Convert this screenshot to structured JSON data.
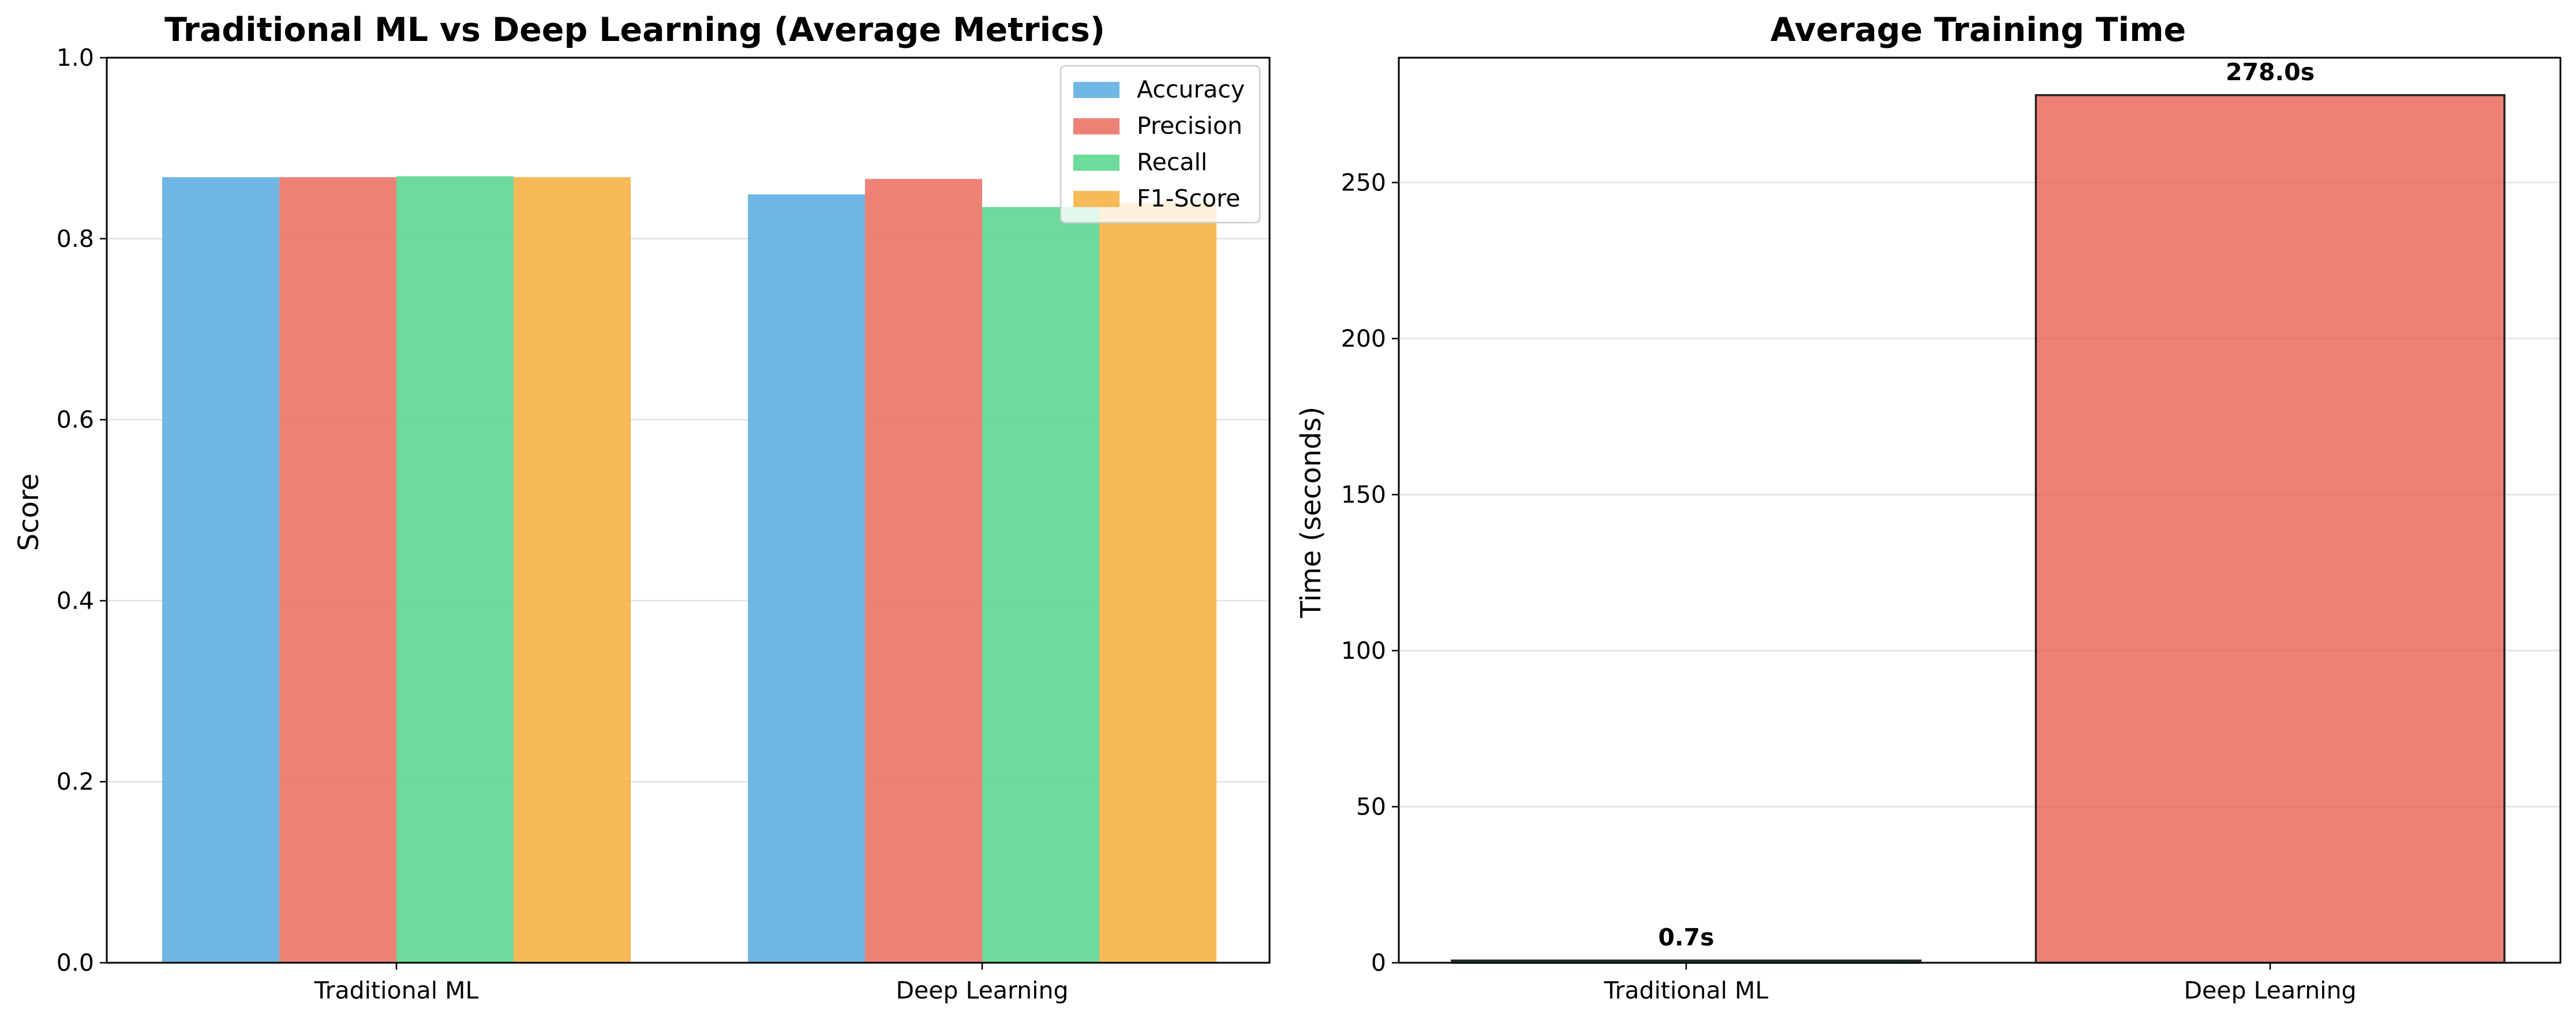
{
  "chart_data": [
    {
      "type": "bar",
      "title": "Traditional ML vs Deep Learning (Average Metrics)",
      "xlabel": "",
      "ylabel": "Score",
      "ylim": [
        0,
        1.0
      ],
      "yticks": [
        "0.0",
        "0.2",
        "0.4",
        "0.6",
        "0.8",
        "1.0"
      ],
      "categories": [
        "Traditional ML",
        "Deep Learning"
      ],
      "series": [
        {
          "name": "Accuracy",
          "color": "#5DADE2",
          "values": [
            0.868,
            0.849
          ]
        },
        {
          "name": "Precision",
          "color": "#EC7063",
          "values": [
            0.868,
            0.866
          ]
        },
        {
          "name": "Recall",
          "color": "#58D68D",
          "values": [
            0.869,
            0.835
          ]
        },
        {
          "name": "F1-Score",
          "color": "#F5B041",
          "values": [
            0.868,
            0.84
          ]
        }
      ],
      "grid": "y",
      "legend": "top-right"
    },
    {
      "type": "bar",
      "title": "Average Training Time",
      "xlabel": "",
      "ylabel": "Time (seconds)",
      "ylim": [
        0,
        290
      ],
      "yticks": [
        "0",
        "50",
        "100",
        "150",
        "200",
        "250"
      ],
      "categories": [
        "Traditional ML",
        "Deep Learning"
      ],
      "values": [
        0.7,
        278.0
      ],
      "colors": [
        "#2ECC71",
        "#E74C3C"
      ],
      "data_labels": [
        "0.7s",
        "278.0s"
      ],
      "grid": "y"
    }
  ]
}
